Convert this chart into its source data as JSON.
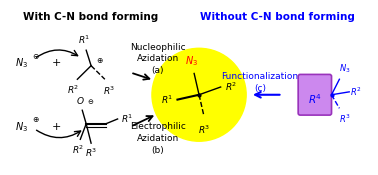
{
  "title_left": "With C-N bond forming",
  "title_right": "Without C-N bond forming",
  "title_left_color": "#000000",
  "title_right_color": "#0000FF",
  "bg_color": "#FFFFFF",
  "label_a": "Nucleophilic\nAzidation\n(a)",
  "label_b": "Electrophilic\nAzidation\n(b)",
  "label_c": "Functionalization\n(c)",
  "yellow_color": "#FFFF00",
  "purple_color": "#CC88EE",
  "purple_edge": "#9933BB"
}
